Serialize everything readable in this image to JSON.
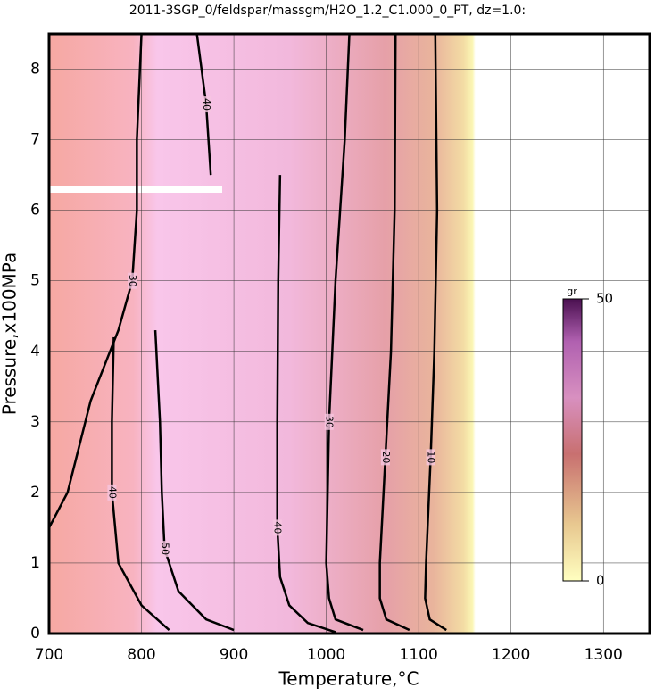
{
  "chart_data": {
    "type": "contour",
    "title": "2011-3SGP_0/feldspar/massgm/H2O_1.2_C1.000_0_PT, dz=1.0:",
    "x_label": "Temperature,°C",
    "y_label": "Pressure,x100MPa",
    "xlim": [
      700,
      1350
    ],
    "ylim": [
      0,
      8.5
    ],
    "xticks": [
      700,
      800,
      900,
      1000,
      1100,
      1200,
      1300
    ],
    "yticks": [
      0,
      1,
      2,
      3,
      4,
      5,
      6,
      7,
      8
    ],
    "grid": true,
    "contours": [
      {
        "level": 10,
        "x": [
          1118,
          1120,
          1117,
          1113,
          1108,
          1107,
          1112,
          1130
        ],
        "y": [
          8.5,
          6,
          4,
          2.5,
          1,
          0.5,
          0.2,
          0.05
        ]
      },
      {
        "level": 20,
        "x": [
          1075,
          1074,
          1070,
          1064,
          1058,
          1058,
          1065,
          1090
        ],
        "y": [
          8.5,
          6,
          4,
          2.5,
          1,
          0.5,
          0.2,
          0.05
        ]
      },
      {
        "level": 30,
        "x": [
          1025,
          1020,
          1010,
          1003,
          1000,
          1003,
          1010,
          1040
        ],
        "y": [
          8.5,
          7,
          5,
          3,
          1,
          0.5,
          0.2,
          0.05
        ]
      },
      {
        "level": 40,
        "x": [
          950,
          948,
          947,
          947,
          950,
          960,
          980,
          1010
        ],
        "y": [
          6.5,
          5,
          3,
          1.5,
          0.8,
          0.4,
          0.15,
          0.02
        ]
      },
      {
        "level": 50,
        "x": [
          815,
          820,
          822,
          825,
          840,
          870,
          900
        ],
        "y": [
          4.3,
          3,
          2,
          1.2,
          0.6,
          0.2,
          0.05
        ]
      },
      {
        "level": 40,
        "x": [
          770,
          768,
          768,
          775,
          800,
          830
        ],
        "y": [
          4.2,
          3,
          2,
          1,
          0.4,
          0.05
        ]
      },
      {
        "level": 30,
        "x": [
          800,
          795,
          795,
          790,
          775,
          745,
          720,
          700
        ],
        "y": [
          8.5,
          7,
          6,
          5,
          4.3,
          3.3,
          2,
          1.5
        ]
      },
      {
        "level": 40,
        "x": [
          860,
          870,
          875
        ],
        "y": [
          8.5,
          7.5,
          6.5
        ]
      }
    ],
    "colorbar": {
      "label": "gr",
      "lim": [
        0,
        50
      ],
      "ticks": [
        0,
        50
      ]
    }
  }
}
